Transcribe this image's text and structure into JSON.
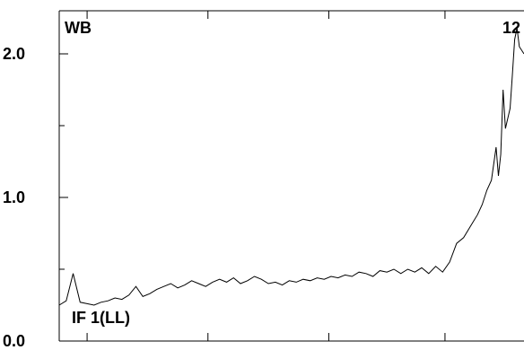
{
  "chart_data": {
    "type": "line",
    "annotations": {
      "top_left": "WB",
      "top_right": "12",
      "bottom_left": "IF 1(LL)"
    },
    "y_ticks": [
      "0.0",
      "1.0",
      "2.0"
    ],
    "ylim": [
      0,
      2.3
    ],
    "xlim": [
      0,
      1
    ],
    "grid": false,
    "series": [
      {
        "x": [
          0.0,
          0.015,
          0.03,
          0.045,
          0.06,
          0.075,
          0.09,
          0.105,
          0.12,
          0.135,
          0.15,
          0.165,
          0.18,
          0.195,
          0.21,
          0.225,
          0.24,
          0.255,
          0.27,
          0.285,
          0.3,
          0.315,
          0.33,
          0.345,
          0.36,
          0.375,
          0.39,
          0.405,
          0.42,
          0.435,
          0.45,
          0.465,
          0.48,
          0.495,
          0.51,
          0.525,
          0.54,
          0.555,
          0.57,
          0.585,
          0.6,
          0.615,
          0.63,
          0.645,
          0.66,
          0.675,
          0.69,
          0.705,
          0.72,
          0.735,
          0.75,
          0.765,
          0.78,
          0.795,
          0.81,
          0.825,
          0.84,
          0.855,
          0.87,
          0.885,
          0.9,
          0.91,
          0.92,
          0.93,
          0.94,
          0.945,
          0.95,
          0.955,
          0.96,
          0.965,
          0.97,
          0.975,
          0.98,
          0.985,
          0.99,
          1.0
        ],
        "values": [
          0.25,
          0.28,
          0.47,
          0.27,
          0.26,
          0.25,
          0.27,
          0.28,
          0.3,
          0.29,
          0.32,
          0.38,
          0.31,
          0.33,
          0.36,
          0.38,
          0.4,
          0.37,
          0.39,
          0.42,
          0.4,
          0.38,
          0.41,
          0.43,
          0.41,
          0.44,
          0.4,
          0.42,
          0.45,
          0.43,
          0.4,
          0.41,
          0.39,
          0.42,
          0.41,
          0.43,
          0.42,
          0.44,
          0.43,
          0.45,
          0.44,
          0.46,
          0.45,
          0.48,
          0.47,
          0.45,
          0.49,
          0.48,
          0.5,
          0.47,
          0.5,
          0.48,
          0.51,
          0.47,
          0.52,
          0.48,
          0.55,
          0.68,
          0.72,
          0.8,
          0.88,
          0.95,
          1.05,
          1.12,
          1.35,
          1.15,
          1.3,
          1.75,
          1.48,
          1.55,
          1.62,
          1.85,
          2.1,
          2.18,
          2.05,
          2.0
        ]
      }
    ]
  }
}
